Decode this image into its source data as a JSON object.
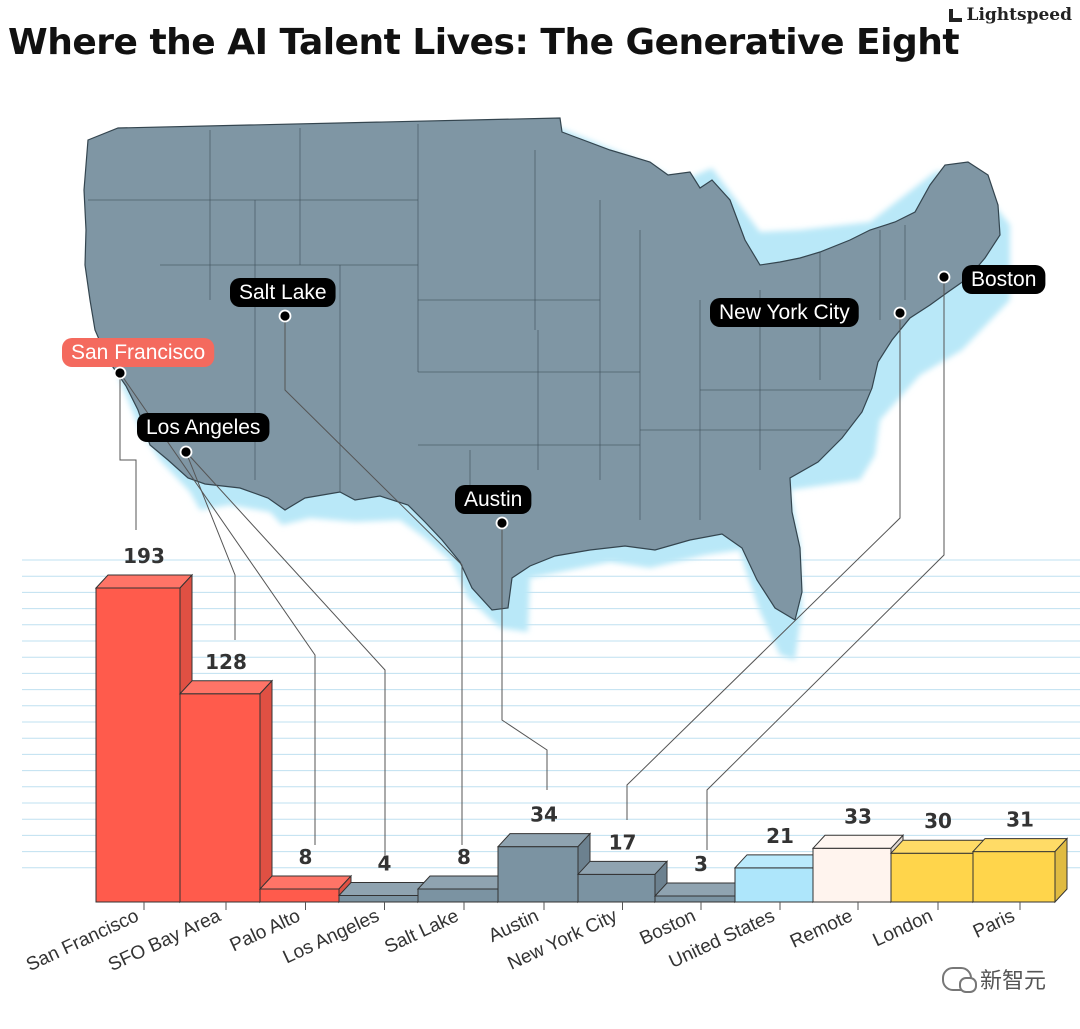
{
  "header": {
    "brand": "Lightspeed",
    "title": "Where the AI Talent Lives: The Generative Eight"
  },
  "colors": {
    "red": "#ff5b4c",
    "slate": "#7b93a2",
    "light_blue": "#aee6fb",
    "cream": "#fff4ee",
    "yellow": "#ffd54b",
    "map_fill": "#7f96a4",
    "map_glow": "#b9e8f8",
    "label_bg": "#000000",
    "highlight_label_bg": "#f46a5e"
  },
  "map": {
    "cities": [
      {
        "name": "San Francisco",
        "highlight": true
      },
      {
        "name": "Salt Lake",
        "highlight": false
      },
      {
        "name": "Los Angeles",
        "highlight": false
      },
      {
        "name": "Austin",
        "highlight": false
      },
      {
        "name": "New York City",
        "highlight": false
      },
      {
        "name": "Boston",
        "highlight": false
      }
    ]
  },
  "chart_data": {
    "type": "bar",
    "title": "Where the AI Talent Lives: The Generative Eight",
    "xlabel": "",
    "ylabel": "",
    "ylim": [
      0,
      200
    ],
    "grid": true,
    "categories": [
      "San Francisco",
      "SFO Bay Area",
      "Palo Alto",
      "Los Angeles",
      "Salt Lake",
      "Austin",
      "New York City",
      "Boston",
      "United States",
      "Remote",
      "London",
      "Paris"
    ],
    "values": [
      193,
      128,
      8,
      4,
      8,
      34,
      17,
      3,
      21,
      33,
      30,
      31
    ],
    "bar_colors": [
      "red",
      "red",
      "red",
      "slate",
      "slate",
      "slate",
      "slate",
      "slate",
      "light_blue",
      "cream",
      "yellow",
      "yellow"
    ]
  },
  "watermark": {
    "text": "新智元"
  }
}
